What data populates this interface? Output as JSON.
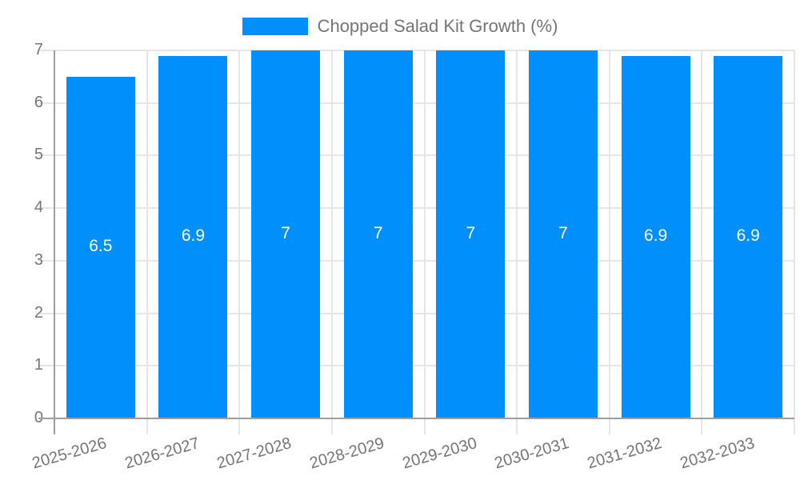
{
  "chart_data": {
    "type": "bar",
    "title": "Chopped Salad Kit Growth (%)",
    "categories": [
      "2025-2026",
      "2026-2027",
      "2027-2028",
      "2028-2029",
      "2029-2030",
      "2030-2031",
      "2031-2032",
      "2032-2033"
    ],
    "values": [
      6.5,
      6.9,
      7,
      7,
      7,
      7,
      6.9,
      6.9
    ],
    "value_labels": [
      "6.5",
      "6.9",
      "7",
      "7",
      "7",
      "7",
      "6.9",
      "6.9"
    ],
    "xlabel": "",
    "ylabel": "",
    "ylim": [
      0,
      7
    ],
    "ytick_step": 1,
    "ytick_labels": [
      "0",
      "1",
      "2",
      "3",
      "4",
      "5",
      "6",
      "7"
    ],
    "grid": true,
    "legend_position": "top",
    "colors": {
      "bar": "#008FFB",
      "grid": "#e6e6e6",
      "axis": "#9e9e9e",
      "tick": "#c6c6c6",
      "label_text": "#757575",
      "value_text": "#ffffff",
      "background": "#ffffff"
    }
  }
}
